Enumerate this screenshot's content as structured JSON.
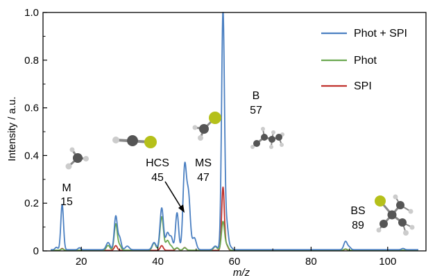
{
  "chart_data": {
    "type": "line",
    "xlabel": "m/z",
    "ylabel": "Intensity / a.u.",
    "xlim": [
      10,
      110
    ],
    "ylim": [
      0,
      1.0
    ],
    "xticks": [
      20,
      40,
      60,
      80,
      100
    ],
    "xtick_labels": [
      "20",
      "40",
      "60",
      "80",
      "100"
    ],
    "yticks": [
      0,
      0.2,
      0.4,
      0.6,
      0.8,
      1.0
    ],
    "ytick_labels": [
      "0",
      "0.2",
      "0.4",
      "0.6",
      "0.8",
      "1.0"
    ],
    "grid": false,
    "legend_position": "top-right",
    "series": [
      {
        "name": "Phot + SPI",
        "color": "#4a7fc1",
        "baseline": 0.005,
        "peaks": [
          {
            "mz": 13.5,
            "h": 0.01,
            "w": 0.35
          },
          {
            "mz": 15,
            "h": 0.19,
            "w": 0.35
          },
          {
            "mz": 19.5,
            "h": 0.008,
            "w": 0.35
          },
          {
            "mz": 27,
            "h": 0.03,
            "w": 0.5
          },
          {
            "mz": 29,
            "h": 0.14,
            "w": 0.4
          },
          {
            "mz": 30,
            "h": 0.05,
            "w": 0.4
          },
          {
            "mz": 32,
            "h": 0.015,
            "w": 0.5
          },
          {
            "mz": 39,
            "h": 0.03,
            "w": 0.5
          },
          {
            "mz": 41,
            "h": 0.175,
            "w": 0.45
          },
          {
            "mz": 42.5,
            "h": 0.07,
            "w": 0.45
          },
          {
            "mz": 43.5,
            "h": 0.05,
            "w": 0.4
          },
          {
            "mz": 45,
            "h": 0.155,
            "w": 0.4
          },
          {
            "mz": 47,
            "h": 0.345,
            "w": 0.45
          },
          {
            "mz": 48,
            "h": 0.22,
            "w": 0.45
          },
          {
            "mz": 49.5,
            "h": 0.05,
            "w": 0.5
          },
          {
            "mz": 55,
            "h": 0.015,
            "w": 0.5
          },
          {
            "mz": 57,
            "h": 1.0,
            "w": 0.38
          },
          {
            "mz": 58,
            "h": 0.1,
            "w": 0.4
          },
          {
            "mz": 59,
            "h": 0.01,
            "w": 0.4
          },
          {
            "mz": 89,
            "h": 0.035,
            "w": 0.45
          },
          {
            "mz": 90,
            "h": 0.01,
            "w": 0.4
          },
          {
            "mz": 104,
            "h": 0.005,
            "w": 0.4
          }
        ]
      },
      {
        "name": "Phot",
        "color": "#6aa84f",
        "baseline": 0.003,
        "peaks": [
          {
            "mz": 15,
            "h": 0.005,
            "w": 0.35
          },
          {
            "mz": 27,
            "h": 0.02,
            "w": 0.45
          },
          {
            "mz": 29,
            "h": 0.11,
            "w": 0.4
          },
          {
            "mz": 30,
            "h": 0.02,
            "w": 0.4
          },
          {
            "mz": 39,
            "h": 0.03,
            "w": 0.45
          },
          {
            "mz": 41,
            "h": 0.14,
            "w": 0.45
          },
          {
            "mz": 42.5,
            "h": 0.04,
            "w": 0.45
          },
          {
            "mz": 43.5,
            "h": 0.015,
            "w": 0.4
          },
          {
            "mz": 45,
            "h": 0.01,
            "w": 0.4
          },
          {
            "mz": 47,
            "h": 0.01,
            "w": 0.4
          },
          {
            "mz": 55,
            "h": 0.015,
            "w": 0.45
          },
          {
            "mz": 57,
            "h": 0.12,
            "w": 0.4
          },
          {
            "mz": 58,
            "h": 0.02,
            "w": 0.4
          },
          {
            "mz": 89,
            "h": 0.005,
            "w": 0.4
          }
        ]
      },
      {
        "name": "SPI",
        "color": "#c0302b",
        "baseline": 0.002,
        "peaks": [
          {
            "mz": 15,
            "h": 0.008,
            "w": 0.35
          },
          {
            "mz": 29,
            "h": 0.02,
            "w": 0.4
          },
          {
            "mz": 41,
            "h": 0.02,
            "w": 0.4
          },
          {
            "mz": 45,
            "h": 0.01,
            "w": 0.4
          },
          {
            "mz": 47,
            "h": 0.012,
            "w": 0.4
          },
          {
            "mz": 57,
            "h": 0.265,
            "w": 0.35
          },
          {
            "mz": 58,
            "h": 0.02,
            "w": 0.35
          },
          {
            "mz": 89,
            "h": 0.005,
            "w": 0.4
          }
        ]
      }
    ],
    "annotations": [
      {
        "label": "M",
        "value": "15"
      },
      {
        "label": "HCS",
        "value": "45"
      },
      {
        "label": "MS",
        "value": "47"
      },
      {
        "label": "B",
        "value": "57"
      },
      {
        "label": "BS",
        "value": "89"
      }
    ]
  }
}
